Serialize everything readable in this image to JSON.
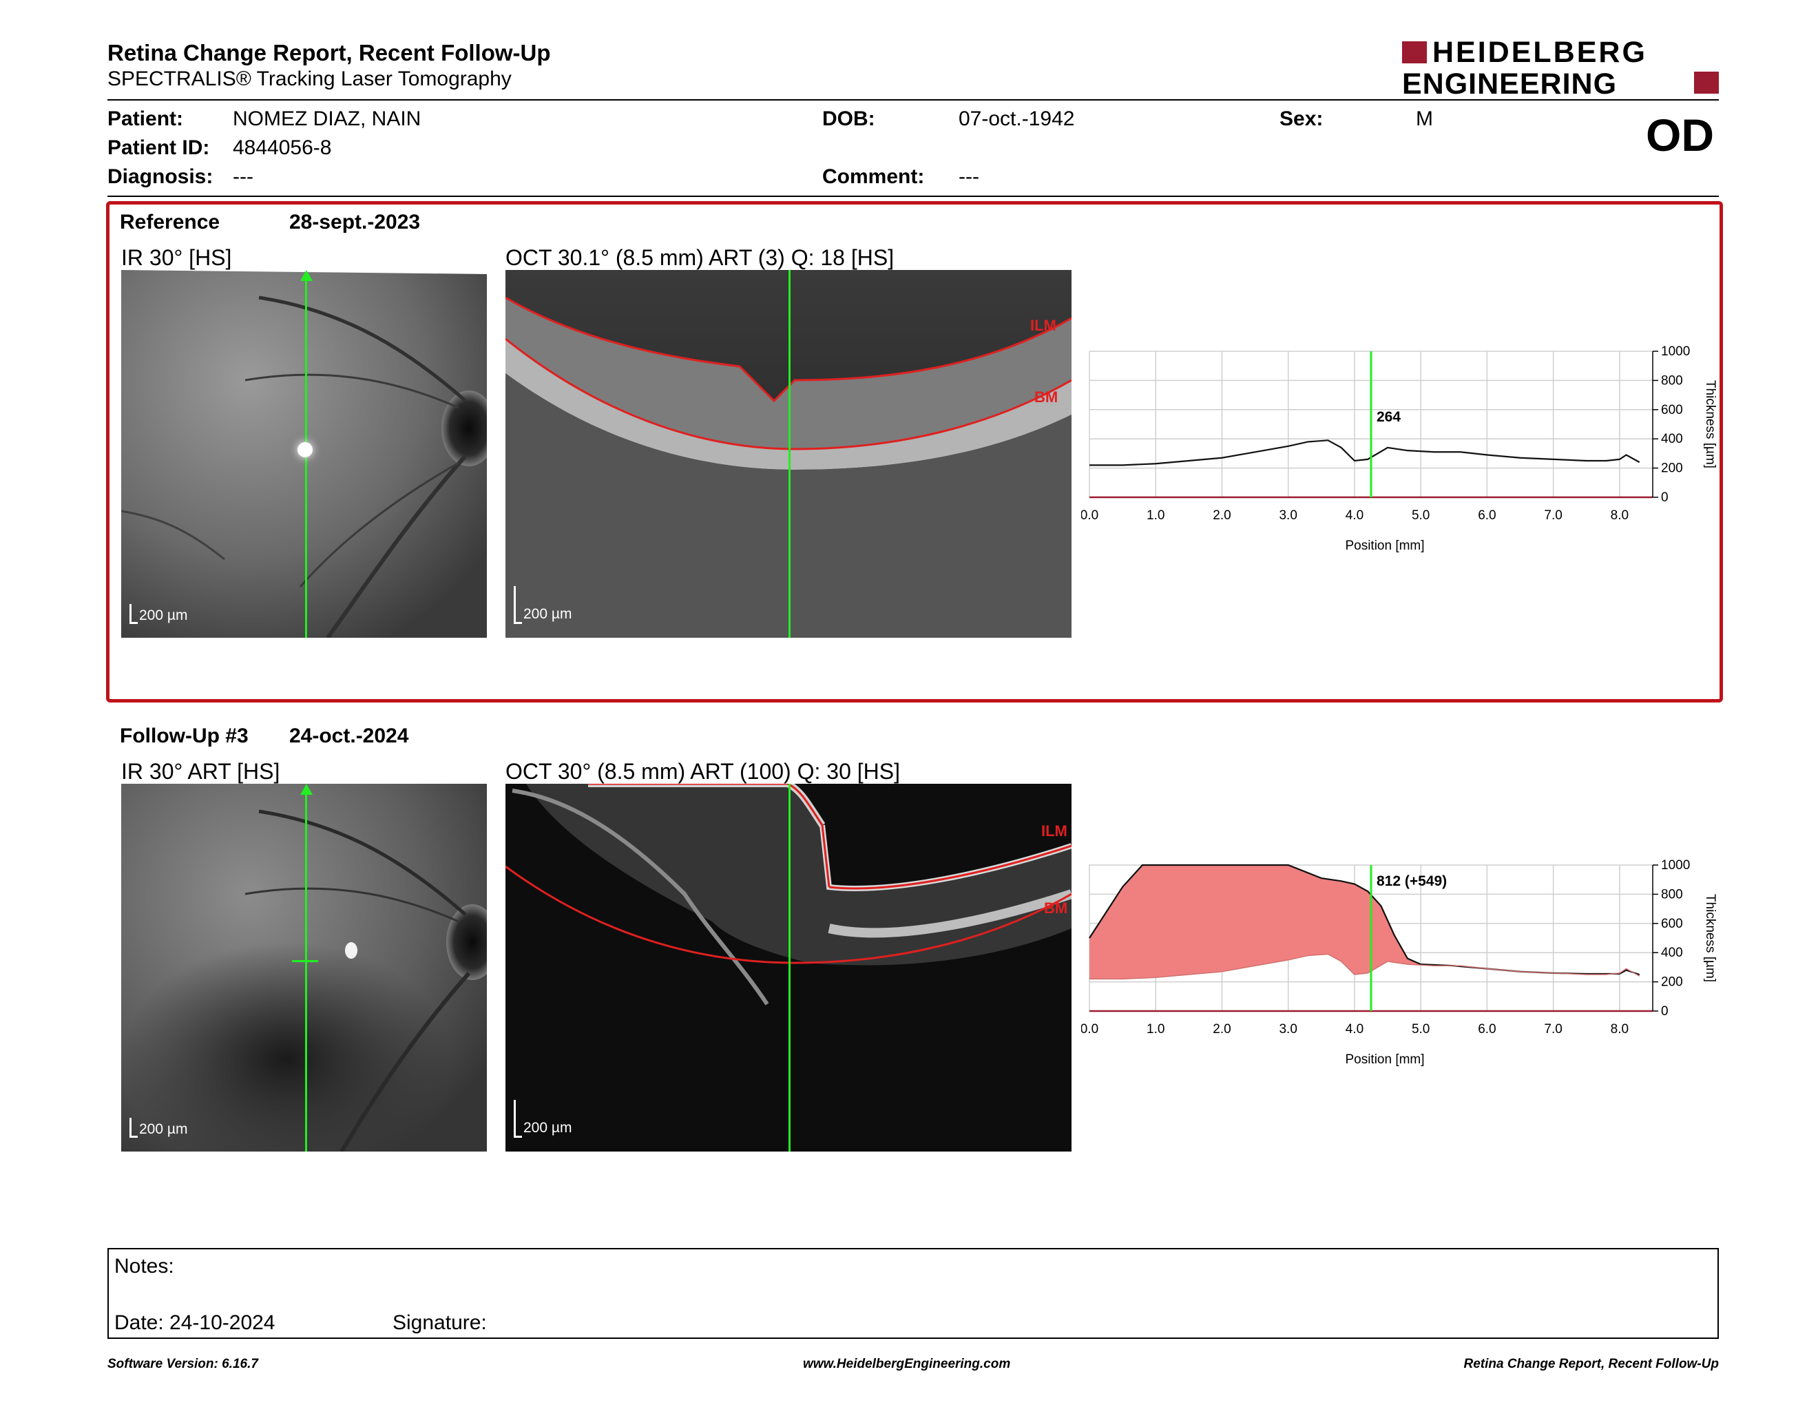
{
  "header": {
    "title": "Retina Change Report, Recent Follow-Up",
    "subtitle": "SPECTRALIS® Tracking Laser Tomography",
    "logo_line1": "HEIDELBERG",
    "logo_line2": "ENGINEERING",
    "eye": "OD",
    "brand_color": "#9b1b30"
  },
  "patient": {
    "patient_label": "Patient:",
    "patient_value": "NOMEZ DIAZ, NAIN",
    "id_label": "Patient ID:",
    "id_value": "4844056-8",
    "diagnosis_label": "Diagnosis:",
    "diagnosis_value": "---",
    "dob_label": "DOB:",
    "dob_value": "07-oct.-1942",
    "comment_label": "Comment:",
    "comment_value": "---",
    "sex_label": "Sex:",
    "sex_value": "M"
  },
  "reference": {
    "label": "Reference",
    "date": "28-sept.-2023",
    "ir_title": "IR 30° [HS]",
    "oct_title": "OCT 30.1° (8.5 mm) ART (3) Q: 18 [HS]",
    "scale_ir": "200 µm",
    "scale_oct": "200 µm",
    "ilm_label": "ILM",
    "bm_label": "BM",
    "readout": "264"
  },
  "followup": {
    "label": "Follow-Up #3",
    "date": "24-oct.-2024",
    "ir_title": "IR 30° ART [HS]",
    "oct_title": "OCT 30° (8.5 mm) ART (100) Q: 30 [HS]",
    "scale_ir": "200 µm",
    "scale_oct": "200 µm",
    "ilm_label": "ILM",
    "bm_label": "BM",
    "readout": "812 (+549)"
  },
  "chart_data": [
    {
      "type": "line",
      "xlabel": "Position [mm]",
      "ylabel": "Thickness [µm]",
      "xlim": [
        0,
        8.5
      ],
      "ylim": [
        0,
        1000
      ],
      "x_ticks": [
        "0.0",
        "1.0",
        "2.0",
        "3.0",
        "4.0",
        "5.0",
        "6.0",
        "7.0",
        "8.0"
      ],
      "y_ticks": [
        "0",
        "200",
        "400",
        "600",
        "800",
        "1000"
      ],
      "cursor_x": 4.25,
      "cursor_value": "264",
      "series": [
        {
          "x": [
            0.0,
            0.5,
            1.0,
            1.5,
            2.0,
            2.5,
            3.0,
            3.3,
            3.6,
            3.8,
            4.0,
            4.2,
            4.5,
            4.8,
            5.2,
            5.6,
            6.0,
            6.5,
            7.0,
            7.5,
            7.8,
            8.0,
            8.1,
            8.3
          ],
          "values": [
            220,
            220,
            230,
            250,
            270,
            310,
            350,
            380,
            390,
            340,
            250,
            260,
            340,
            320,
            310,
            310,
            290,
            270,
            260,
            250,
            250,
            260,
            290,
            240
          ]
        }
      ],
      "grid": true
    },
    {
      "type": "area",
      "xlabel": "Position [mm]",
      "ylabel": "Thickness [µm]",
      "xlim": [
        0,
        8.5
      ],
      "ylim": [
        0,
        1000
      ],
      "x_ticks": [
        "0.0",
        "1.0",
        "2.0",
        "3.0",
        "4.0",
        "5.0",
        "6.0",
        "7.0",
        "8.0"
      ],
      "y_ticks": [
        "0",
        "200",
        "400",
        "600",
        "800",
        "1000"
      ],
      "cursor_x": 4.25,
      "cursor_value": "812 (+549)",
      "fill_color": "#f08080",
      "series": [
        {
          "x": [
            0.0,
            0.5,
            0.8,
            1.0,
            2.0,
            3.0,
            3.5,
            3.8,
            4.0,
            4.2,
            4.4,
            4.6,
            4.8,
            5.0,
            5.5,
            6.0,
            6.5,
            7.0,
            7.5,
            8.0,
            8.1,
            8.3
          ],
          "values": [
            500,
            850,
            1000,
            1000,
            1000,
            1000,
            910,
            890,
            870,
            820,
            720,
            520,
            360,
            320,
            310,
            290,
            270,
            260,
            255,
            255,
            280,
            250
          ]
        },
        {
          "x": [
            0.0,
            0.5,
            1.0,
            1.5,
            2.0,
            2.5,
            3.0,
            3.3,
            3.6,
            3.8,
            4.0,
            4.2,
            4.5,
            4.8,
            5.2,
            5.6,
            6.0,
            6.5,
            7.0,
            7.5,
            7.8,
            8.0,
            8.1,
            8.3
          ],
          "values": [
            220,
            220,
            230,
            250,
            270,
            310,
            350,
            380,
            390,
            340,
            250,
            260,
            340,
            320,
            310,
            310,
            290,
            270,
            260,
            250,
            250,
            260,
            290,
            240
          ]
        }
      ],
      "grid": true
    }
  ],
  "notes": {
    "notes_label": "Notes:",
    "date_label": "Date: 24-10-2024",
    "signature_label": "Signature:"
  },
  "footer": {
    "software": "Software Version: 6.16.7",
    "website": "www.HeidelbergEngineering.com",
    "report": "Retina Change Report, Recent Follow-Up"
  }
}
